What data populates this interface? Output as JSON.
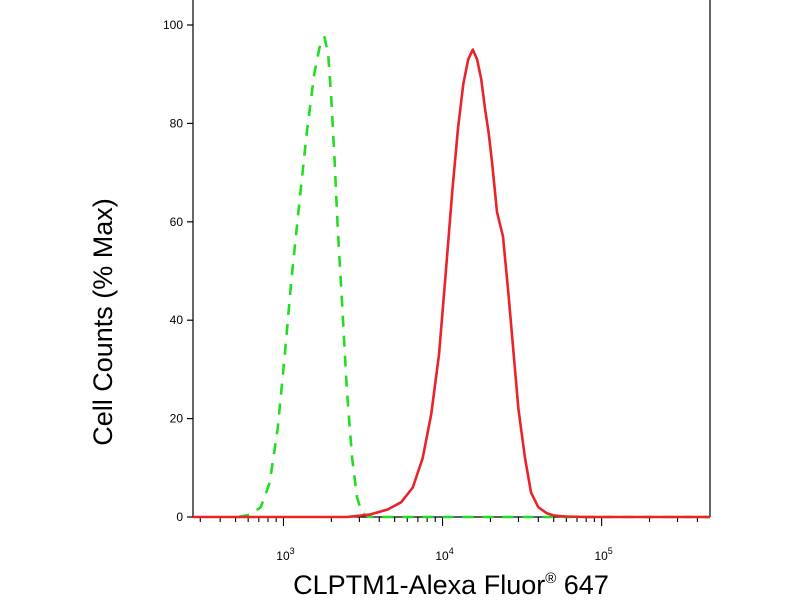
{
  "chart_data": {
    "type": "line",
    "title": "",
    "xlabel": "CLPTM1-Alexa Fluor",
    "xlabel_superscript": "®",
    "xlabel_suffix": " 647",
    "ylabel": "Cell Counts (% Max)",
    "x_scale": "log",
    "xlim": [
      270,
      480000
    ],
    "ylim": [
      0,
      100
    ],
    "y_ticks": [
      0,
      20,
      40,
      60,
      80,
      100
    ],
    "x_tick_labels": [
      {
        "value": 1000,
        "base": "10",
        "exp": "3"
      },
      {
        "value": 10000,
        "base": "10",
        "exp": "4"
      },
      {
        "value": 100000,
        "base": "10",
        "exp": "5"
      }
    ],
    "grid": false,
    "legend": "none",
    "series": [
      {
        "color": "#22dd22",
        "dashed": true,
        "x": [
          520,
          620,
          720,
          820,
          920,
          1020,
          1120,
          1250,
          1400,
          1560,
          1700,
          1810,
          1910,
          2000,
          2100,
          2200,
          2350,
          2500,
          2700,
          2900,
          3100,
          3300,
          3600,
          4000,
          5000,
          10000,
          30000,
          100000,
          480000
        ],
        "y": [
          0,
          0.5,
          2,
          7,
          18,
          33,
          48,
          63,
          78,
          90,
          96,
          97.5,
          94,
          85,
          72,
          58,
          42,
          26,
          12,
          4,
          1,
          0.3,
          0,
          0,
          0,
          0,
          0,
          0,
          0
        ]
      },
      {
        "color": "#e8232a",
        "dashed": false,
        "x": [
          270,
          1000,
          2500,
          3500,
          4500,
          5500,
          6500,
          7500,
          8500,
          9500,
          10500,
          11500,
          12500,
          13500,
          14500,
          15500,
          16500,
          17500,
          18500,
          19500,
          20500,
          22000,
          24000,
          26000,
          28000,
          30000,
          33000,
          36000,
          40000,
          45000,
          50000,
          60000,
          80000,
          120000,
          480000
        ],
        "y": [
          0,
          0,
          0,
          0.5,
          1.5,
          3,
          6,
          12,
          21,
          33,
          50,
          66,
          79,
          88,
          93,
          95,
          93,
          89,
          83,
          78,
          72,
          62,
          57,
          45,
          33,
          22,
          12,
          5,
          2,
          0.8,
          0.3,
          0.1,
          0,
          0,
          0
        ]
      }
    ]
  }
}
